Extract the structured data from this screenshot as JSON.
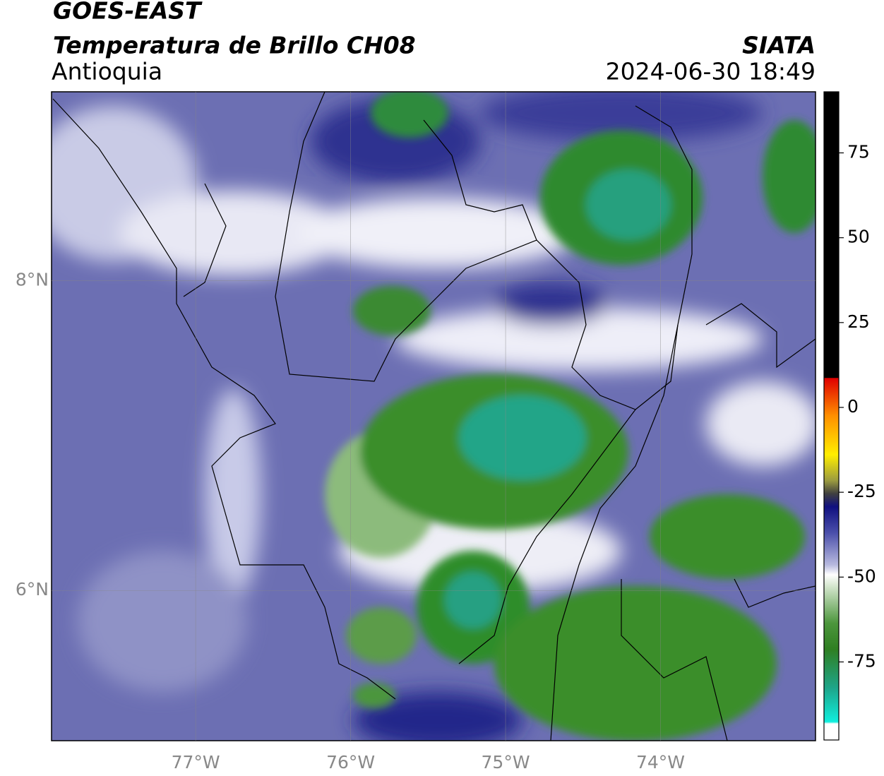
{
  "header": {
    "title": "GOES-EAST",
    "subtitle": "Temperatura de Brillo CH08",
    "region": "Antioquia",
    "source": "SIATA",
    "datetime": "2024-06-30 18:49"
  },
  "map": {
    "type": "map",
    "xlim": [
      -77.93,
      -73.0
    ],
    "ylim": [
      5.03,
      9.22
    ],
    "xticks": [
      {
        "value": -77,
        "label": "77°W"
      },
      {
        "value": -76,
        "label": "76°W"
      },
      {
        "value": -75,
        "label": "75°W"
      },
      {
        "value": -74,
        "label": "74°W"
      }
    ],
    "yticks": [
      {
        "value": 6,
        "label": "6°N"
      },
      {
        "value": 8,
        "label": "8°N"
      }
    ],
    "grid": true
  },
  "colorbar": {
    "clim": [
      -98,
      93
    ],
    "ticks": [
      75,
      50,
      25,
      0,
      -25,
      -50,
      -75
    ]
  }
}
